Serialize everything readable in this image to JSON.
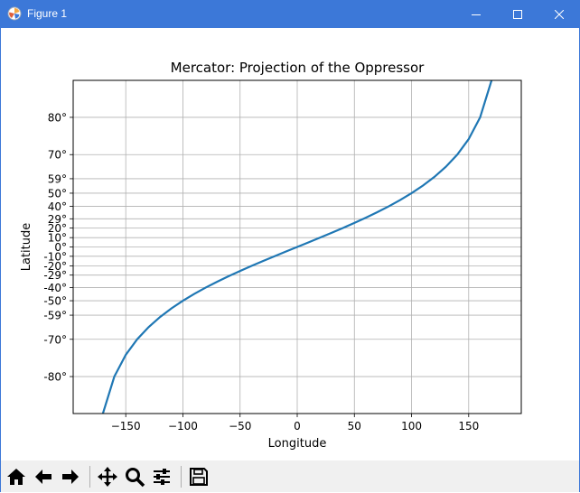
{
  "window": {
    "title": "Figure 1",
    "accent": "#3c78d8"
  },
  "toolbar": {
    "items": [
      {
        "name": "home-icon",
        "label": "Home"
      },
      {
        "name": "back-icon",
        "label": "Back"
      },
      {
        "name": "forward-icon",
        "label": "Forward"
      },
      {
        "name": "pan-icon",
        "label": "Pan"
      },
      {
        "name": "zoom-icon",
        "label": "Zoom"
      },
      {
        "name": "configure-subplots-icon",
        "label": "Configure subplots"
      },
      {
        "name": "save-icon",
        "label": "Save"
      }
    ]
  },
  "chart_data": {
    "type": "line",
    "title": "Mercator: Projection of the Oppressor",
    "xlabel": "Longitude",
    "ylabel": "Latitude",
    "xlim": [
      -196,
      196
    ],
    "ylim": [
      -85,
      85
    ],
    "xticks": [
      -150,
      -100,
      -50,
      0,
      50,
      100,
      150
    ],
    "xtick_labels": [
      "−150",
      "−100",
      "−50",
      "0",
      "50",
      "100",
      "150"
    ],
    "yticks": [
      -80,
      -70,
      -59,
      -50,
      -40,
      -29,
      -20,
      -10,
      0,
      10,
      20,
      29,
      40,
      50,
      59,
      70,
      80
    ],
    "ytick_labels": [
      "-80°",
      "-70°",
      "-59°",
      "-50°",
      "-40°",
      "-29°",
      "-20°",
      "-10°",
      "0°",
      "10°",
      "20°",
      "29°",
      "40°",
      "50°",
      "59°",
      "70°",
      "80°"
    ],
    "y_scale": "mercator",
    "grid": true,
    "line_color": "#1f77b4",
    "series": [
      {
        "x": [
          -170,
          -160,
          -150,
          -140,
          -130,
          -120,
          -110,
          -100,
          -90,
          -80,
          -70,
          -60,
          -50,
          -40,
          -30,
          -20,
          -10,
          0,
          10,
          20,
          30,
          40,
          50,
          60,
          70,
          80,
          90,
          100,
          110,
          120,
          130,
          140,
          150,
          160,
          170
        ],
        "y": [
          -85,
          -80,
          -75,
          -70,
          -65,
          -60,
          -55,
          -50,
          -45,
          -40,
          -35,
          -30,
          -25,
          -20,
          -15,
          -10,
          -5,
          0,
          5,
          10,
          15,
          20,
          25,
          30,
          35,
          40,
          45,
          50,
          55,
          60,
          65,
          70,
          75,
          80,
          85
        ]
      }
    ]
  }
}
